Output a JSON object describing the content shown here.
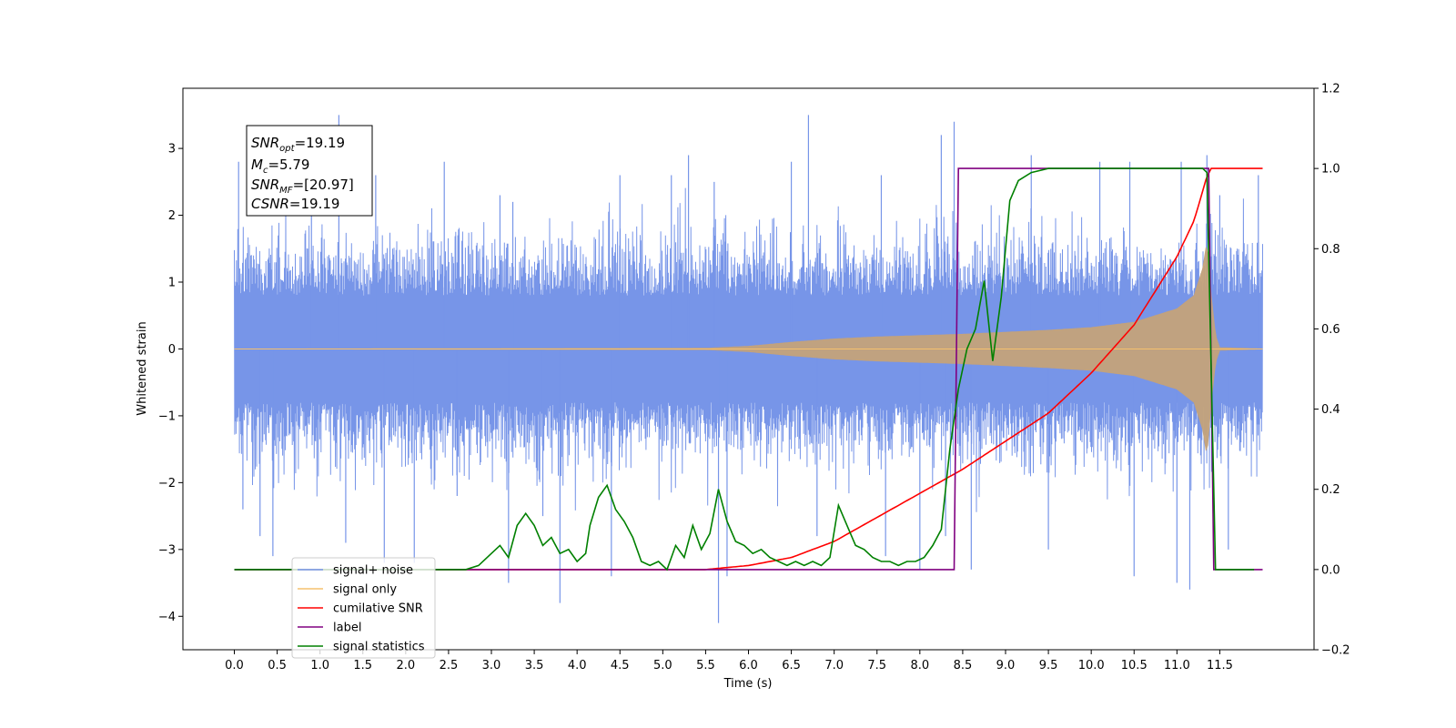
{
  "chart_data": {
    "type": "line",
    "xlabel": "Time (s)",
    "ylabel": "Whitened strain",
    "xlim": [
      -0.6,
      12.6
    ],
    "ylim": [
      -4.5,
      3.9
    ],
    "ylim_right": [
      -0.2,
      1.2
    ],
    "x_ticks": [
      0.0,
      0.5,
      1.0,
      1.5,
      2.0,
      2.5,
      3.0,
      3.5,
      4.0,
      4.5,
      5.0,
      5.5,
      6.0,
      6.5,
      7.0,
      7.5,
      8.0,
      8.5,
      9.0,
      9.5,
      10.0,
      10.5,
      11.0,
      11.5
    ],
    "x_tick_labels": [
      "0.0",
      "0.5",
      "1.0",
      "1.5",
      "2.0",
      "2.5",
      "3.0",
      "3.5",
      "4.0",
      "4.5",
      "5.0",
      "5.5",
      "6.0",
      "6.5",
      "7.0",
      "7.5",
      "8.0",
      "8.5",
      "9.0",
      "9.5",
      "10.0",
      "10.5",
      "11.0",
      "11.5"
    ],
    "y_ticks": [
      -4,
      -3,
      -2,
      -1,
      0,
      1,
      2,
      3
    ],
    "y_tick_labels": [
      "−4",
      "−3",
      "−2",
      "−1",
      "0",
      "1",
      "2",
      "3"
    ],
    "y_right_ticks": [
      -0.2,
      0.0,
      0.2,
      0.4,
      0.6,
      0.8,
      1.0,
      1.2
    ],
    "y_right_tick_labels": [
      "−0.2",
      "0.0",
      "0.2",
      "0.4",
      "0.6",
      "0.8",
      "1.0",
      "1.2"
    ],
    "grid": false,
    "legend_position": "lower-left",
    "annotation": {
      "snr_opt": {
        "base": "SNR",
        "sub": "opt",
        "value": "=19.19"
      },
      "mc": {
        "base": "M",
        "sub": "c",
        "value": "=5.79"
      },
      "snr_mf": {
        "base": "SNR",
        "sub": "MF",
        "value": "=[20.97]"
      },
      "csnr": {
        "base": "CSNR",
        "value": "=19.19"
      }
    },
    "series": [
      {
        "name": "signal+ noise",
        "axis": "left",
        "color": "#7795e8",
        "kind": "noise_band",
        "x_range": [
          0.0,
          12.0
        ],
        "typical_envelope": 1.7,
        "x": [
          0.05,
          0.1,
          0.3,
          0.45,
          0.9,
          1.22,
          1.3,
          1.65,
          1.75,
          2.1,
          2.45,
          2.6,
          3.1,
          3.2,
          3.25,
          3.6,
          3.8,
          4.4,
          4.5,
          5.1,
          5.3,
          5.6,
          5.65,
          5.75,
          6.5,
          6.7,
          6.8,
          7.55,
          7.6,
          8.0,
          8.25,
          8.3,
          8.4,
          8.6,
          9.3,
          9.5,
          10.1,
          10.45,
          10.5,
          11.0,
          11.05,
          11.15,
          11.35,
          11.5,
          11.6,
          11.95
        ],
        "y": [
          2.8,
          -2.4,
          -2.8,
          -3.1,
          2.2,
          3.5,
          -2.9,
          2.6,
          -3.2,
          -3.2,
          2.8,
          -2.2,
          2.3,
          -3.5,
          2.2,
          -2.5,
          -3.8,
          -3.4,
          2.6,
          2.6,
          2.9,
          2.5,
          -4.1,
          -3.4,
          2.8,
          3.5,
          -2.8,
          2.6,
          -3.1,
          -3.3,
          3.2,
          -2.8,
          3.4,
          -3.3,
          2.9,
          -3.0,
          2.8,
          2.8,
          -3.4,
          -3.5,
          2.8,
          -3.6,
          2.9,
          2.3,
          -3.0,
          2.6
        ]
      },
      {
        "name": "signal only",
        "axis": "left",
        "color": "#c4a27a",
        "kind": "chirp",
        "x": [
          0.0,
          5.5,
          6.0,
          6.5,
          7.0,
          7.5,
          8.0,
          8.5,
          9.0,
          9.5,
          10.0,
          10.5,
          11.0,
          11.2,
          11.3,
          11.35,
          11.4,
          11.45,
          11.5,
          12.0
        ],
        "amplitude": [
          0.0,
          0.01,
          0.04,
          0.1,
          0.15,
          0.18,
          0.2,
          0.22,
          0.25,
          0.28,
          0.32,
          0.4,
          0.6,
          0.8,
          1.2,
          1.6,
          0.8,
          0.2,
          0.02,
          0.0
        ]
      },
      {
        "name": "cumilative SNR",
        "axis": "right",
        "color": "#ff0000",
        "x": [
          0.0,
          5.5,
          6.0,
          6.5,
          7.0,
          7.5,
          8.0,
          8.5,
          9.0,
          9.5,
          10.0,
          10.5,
          11.0,
          11.2,
          11.35,
          11.4,
          12.0
        ],
        "y": [
          0.0,
          0.0,
          0.01,
          0.03,
          0.07,
          0.13,
          0.19,
          0.25,
          0.32,
          0.39,
          0.49,
          0.61,
          0.78,
          0.87,
          0.98,
          1.0,
          1.0
        ]
      },
      {
        "name": "label",
        "axis": "right",
        "color": "#800080",
        "x": [
          0.0,
          8.4,
          8.45,
          11.37,
          11.43,
          12.0
        ],
        "y": [
          0.0,
          0.0,
          1.0,
          1.0,
          0.0,
          0.0
        ]
      },
      {
        "name": "signal statistics",
        "axis": "right",
        "color": "#008000",
        "x": [
          0.0,
          2.7,
          2.85,
          3.0,
          3.1,
          3.2,
          3.3,
          3.4,
          3.5,
          3.6,
          3.7,
          3.8,
          3.9,
          4.0,
          4.1,
          4.15,
          4.25,
          4.35,
          4.45,
          4.55,
          4.65,
          4.75,
          4.85,
          4.95,
          5.05,
          5.15,
          5.25,
          5.35,
          5.45,
          5.55,
          5.65,
          5.75,
          5.85,
          5.95,
          6.05,
          6.15,
          6.25,
          6.35,
          6.45,
          6.55,
          6.65,
          6.75,
          6.85,
          6.95,
          7.05,
          7.15,
          7.25,
          7.35,
          7.45,
          7.55,
          7.65,
          7.75,
          7.85,
          7.95,
          8.05,
          8.15,
          8.25,
          8.35,
          8.45,
          8.55,
          8.65,
          8.75,
          8.85,
          8.95,
          9.05,
          9.15,
          9.3,
          9.5,
          10.0,
          11.0,
          11.3,
          11.35,
          11.45,
          11.9
        ],
        "y": [
          0.0,
          0.0,
          0.01,
          0.04,
          0.06,
          0.03,
          0.11,
          0.14,
          0.11,
          0.06,
          0.08,
          0.04,
          0.05,
          0.02,
          0.04,
          0.11,
          0.18,
          0.21,
          0.15,
          0.12,
          0.08,
          0.02,
          0.01,
          0.02,
          0.0,
          0.06,
          0.03,
          0.11,
          0.05,
          0.09,
          0.2,
          0.12,
          0.07,
          0.06,
          0.04,
          0.05,
          0.03,
          0.02,
          0.01,
          0.02,
          0.01,
          0.02,
          0.01,
          0.03,
          0.16,
          0.11,
          0.06,
          0.05,
          0.03,
          0.02,
          0.02,
          0.01,
          0.02,
          0.02,
          0.03,
          0.06,
          0.1,
          0.3,
          0.45,
          0.55,
          0.6,
          0.72,
          0.52,
          0.68,
          0.92,
          0.97,
          0.99,
          1.0,
          1.0,
          1.0,
          1.0,
          0.99,
          0.0,
          0.0
        ]
      }
    ]
  }
}
